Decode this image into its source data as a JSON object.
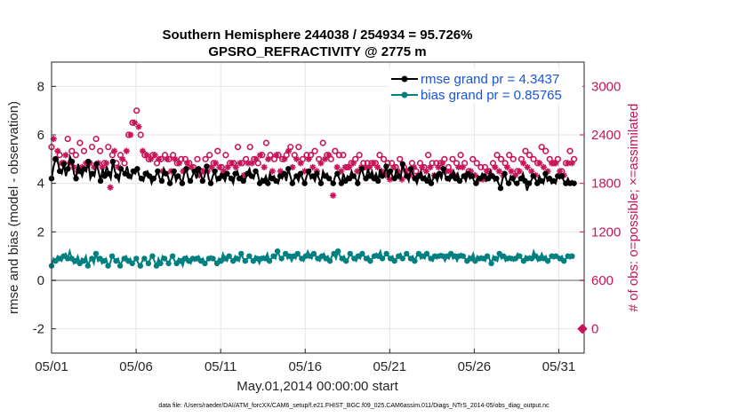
{
  "chart_data": {
    "type": "line",
    "title": "Southern Hemisphere 244038 / 254934 = 95.726%",
    "subtitle": "GPSRO_REFRACTIVITY @ 2775 m",
    "xlabel": "May.01,2014 00:00:00 start",
    "ylabel": "rmse and bias (model - observation)",
    "ylabel_right": "# of obs: o=possible; ×=assimilated",
    "xlim": [
      0,
      31.5
    ],
    "ylim": [
      -3,
      9
    ],
    "ylim_right": [
      -300,
      3300
    ],
    "x_ticks": [
      0,
      5,
      10,
      15,
      20,
      25,
      30
    ],
    "x_tick_labels": [
      "05/01",
      "05/06",
      "05/11",
      "05/16",
      "05/21",
      "05/26",
      "05/31"
    ],
    "y_ticks": [
      -2,
      0,
      2,
      4,
      6,
      8
    ],
    "y_tick_labels": [
      "-2",
      "0",
      "2",
      "4",
      "6",
      "8"
    ],
    "y_right_ticks": [
      0,
      600,
      1200,
      1800,
      2400,
      3000
    ],
    "y_right_tick_labels": [
      "0",
      "600",
      "1200",
      "1800",
      "2400",
      "3000"
    ],
    "grid": true,
    "legend_position": "top-right",
    "series": [
      {
        "name": "rmse grand pr = 4.3437",
        "axis": "left",
        "color": "#000000",
        "values": [
          4.2,
          4.7,
          5.0,
          4.9,
          4.5,
          4.4,
          4.8,
          4.3,
          4.6,
          5.1,
          4.9,
          4.4,
          4.2,
          4.8,
          4.5,
          4.3,
          4.6,
          4.5,
          4.9,
          4.2,
          4.4,
          4.3,
          4.8,
          4.5,
          4.1,
          4.6,
          4.3,
          4.7,
          4.4,
          4.2,
          4.9,
          4.5,
          4.3,
          4.1,
          4.6,
          4.5,
          4.4,
          4.7,
          4.3,
          4.2,
          4.5,
          4.4,
          4.6,
          4.3,
          4.2,
          4.1,
          4.4,
          4.5,
          4.3,
          4.0,
          4.2,
          4.3,
          4.5,
          4.2,
          4.1,
          4.6,
          4.4,
          4.3,
          4.0,
          4.2,
          4.5,
          4.1,
          4.3,
          4.2,
          4.0,
          4.4,
          4.6,
          4.2,
          4.1,
          4.3,
          4.5,
          4.2,
          4.6,
          4.4,
          4.1,
          4.3,
          4.7,
          4.2,
          4.0,
          4.3,
          4.5,
          4.1,
          4.2,
          4.4,
          4.3,
          4.1,
          4.4,
          4.3,
          4.2,
          4.0,
          4.4,
          4.5,
          4.2,
          4.3,
          4.1,
          4.2,
          4.4,
          4.6,
          4.3,
          4.2,
          4.5,
          4.4,
          4.0,
          4.2,
          4.1,
          4.3,
          4.0,
          4.4,
          4.2,
          4.3,
          4.1,
          4.0,
          4.3,
          4.2,
          4.4,
          4.1,
          4.6,
          4.3,
          4.0,
          4.2,
          4.3,
          4.1,
          4.4,
          4.2,
          4.0,
          4.3,
          4.5,
          4.2,
          4.3,
          4.1,
          4.4,
          4.2,
          4.0,
          4.5,
          4.3,
          4.4,
          4.2,
          4.1,
          4.0,
          4.3,
          4.4,
          4.2,
          4.0,
          4.4,
          4.1,
          4.3,
          4.2,
          4.5,
          4.3,
          4.2,
          4.0,
          4.4,
          4.6,
          4.3,
          4.2,
          4.6,
          4.3,
          4.5,
          4.2,
          4.4,
          4.1,
          4.6,
          4.3,
          4.4,
          4.7,
          4.2,
          4.5,
          4.3,
          4.2,
          4.6,
          4.3,
          4.2,
          4.8,
          4.5,
          4.3,
          4.1,
          4.6,
          4.4,
          4.2,
          4.0,
          4.3,
          4.5,
          4.2,
          4.3,
          4.1,
          4.4,
          4.0,
          4.2,
          4.3,
          4.1,
          4.4,
          4.2,
          4.6,
          4.3,
          4.2,
          4.1,
          4.3,
          4.5,
          4.2,
          4.4,
          4.1,
          4.2,
          4.3,
          4.1,
          4.4,
          4.2,
          4.3,
          4.1,
          4.0,
          4.3,
          4.2,
          4.4,
          4.3,
          4.1,
          4.2,
          4.5,
          4.3,
          4.1,
          4.2,
          4.0,
          3.8,
          4.2,
          4.4,
          4.1,
          4.0,
          4.3,
          4.2,
          4.0,
          4.0,
          4.1,
          4.2,
          4.4,
          4.1,
          3.7,
          4.0,
          4.1,
          4.3,
          4.2,
          4.0,
          4.3,
          4.1,
          4.0,
          4.4,
          4.1,
          4.2,
          4.0,
          4.1,
          4.0,
          4.3,
          4.2,
          4.3,
          4.1,
          4.0,
          4.2,
          4.0,
          4.1,
          4.0
        ]
      },
      {
        "name": "bias grand pr = 0.85765",
        "axis": "left",
        "color": "#008080",
        "values": [
          0.6,
          0.9,
          0.8,
          1.0,
          0.9,
          0.8,
          1.0,
          1.1,
          0.9,
          1.2,
          0.9,
          0.7,
          0.8,
          1.0,
          0.7,
          0.9,
          0.8,
          1.0,
          0.6,
          0.8,
          0.9,
          0.7,
          1.1,
          0.8,
          0.9,
          0.7,
          0.8,
          0.9,
          0.6,
          0.7,
          1.0,
          0.9,
          0.8,
          0.9,
          0.6,
          0.8,
          0.9,
          1.0,
          0.8,
          0.9,
          0.7,
          0.8,
          0.9,
          0.7,
          0.6,
          0.8,
          0.9,
          0.8,
          0.7,
          0.9,
          1.0,
          0.8,
          0.6,
          0.9,
          0.7,
          1.0,
          0.9,
          0.8,
          0.7,
          0.9,
          1.0,
          0.8,
          0.7,
          0.9,
          0.8,
          0.6,
          0.9,
          1.0,
          0.8,
          0.7,
          0.9,
          0.8,
          0.9,
          1.0,
          0.8,
          0.9,
          0.7,
          0.8,
          0.9,
          1.0,
          0.9,
          0.8,
          0.7,
          0.9,
          0.8,
          1.1,
          0.9,
          0.8,
          1.0,
          0.9,
          0.8,
          1.0,
          0.9,
          0.8,
          1.1,
          0.9,
          0.8,
          0.9,
          1.0,
          0.9,
          0.8,
          1.0,
          0.9,
          0.7,
          0.9,
          1.0,
          0.9,
          1.1,
          0.8,
          0.9,
          1.0,
          0.9,
          1.2,
          1.0,
          0.9,
          1.0,
          1.1,
          0.9,
          1.0,
          0.8,
          1.0,
          0.9,
          1.1,
          1.0,
          0.9,
          0.8,
          1.0,
          1.2,
          1.0,
          0.9,
          1.1,
          1.0,
          0.9,
          0.8,
          1.0,
          1.1,
          0.9,
          1.0,
          0.8,
          1.0,
          1.1,
          0.9,
          1.2,
          1.0,
          0.9,
          1.0,
          0.8,
          0.9,
          1.1,
          1.0,
          0.9,
          0.8,
          1.0,
          0.9,
          1.1,
          1.0,
          0.9,
          1.0,
          0.8,
          0.9,
          1.0,
          1.1,
          1.0,
          1.2,
          0.9,
          1.0,
          1.1,
          1.0,
          0.9,
          1.0,
          0.8,
          0.9,
          1.0,
          1.1,
          0.9,
          1.0,
          1.1,
          1.0,
          0.9,
          1.0,
          0.8,
          1.0,
          1.1,
          0.9,
          1.0,
          0.9,
          1.1,
          1.0,
          0.9,
          0.8,
          1.0,
          0.9,
          1.0,
          1.1,
          1.0,
          0.8,
          1.0,
          0.9,
          1.1,
          0.9,
          1.0,
          0.8,
          1.0,
          1.1,
          1.0,
          0.9,
          0.8,
          1.0,
          0.9,
          1.1,
          0.8,
          1.0,
          0.9,
          1.0,
          0.9,
          0.8,
          1.0,
          0.9,
          0.7,
          1.0,
          0.9,
          0.8,
          1.1,
          0.9,
          1.0,
          0.8,
          0.9,
          1.0,
          0.9,
          0.8,
          0.9,
          1.1,
          1.0,
          0.9,
          0.8,
          1.0,
          0.9,
          1.0,
          0.9,
          1.2,
          1.0,
          0.8,
          0.9,
          1.1,
          0.9,
          1.0,
          0.8,
          0.9,
          1.0,
          0.9,
          1.0,
          1.0,
          0.9,
          1.0,
          0.8,
          0.9,
          1.0,
          0.9,
          1.0,
          0.9
        ]
      }
    ],
    "obs_possible": {
      "axis": "right",
      "marker": "circle",
      "color": "#c8155a",
      "values": [
        2250,
        2450,
        2100,
        2300,
        2150,
        2200,
        2050,
        2250,
        2350,
        2150,
        2200,
        2100,
        2150,
        2050,
        2300,
        2100,
        2200,
        2150,
        2050,
        2150,
        2250,
        2100,
        2350,
        2150,
        2200,
        2100,
        2050,
        2150,
        2250,
        2050,
        2150,
        2300,
        2050,
        2100,
        2150,
        2200,
        2050,
        2300,
        2400,
        2500,
        2550,
        2650,
        2700,
        2600,
        2400,
        2300,
        2150,
        2250,
        2100,
        2200,
        2150,
        2250,
        2050,
        2200,
        2100,
        2050,
        2150,
        2200,
        2100,
        2050,
        2150,
        2200,
        2050,
        2150,
        2100,
        2050,
        2100,
        2150,
        2050,
        2100,
        2000,
        2050,
        2100,
        2000,
        1950,
        2050,
        2100,
        2050,
        2150,
        2100,
        2050,
        2150,
        2200,
        2100,
        2000,
        2050,
        2150,
        2100,
        2050,
        2150,
        2050,
        2100,
        2250,
        2150,
        2050,
        2000,
        2100,
        2150,
        2250,
        2150,
        2100,
        2200,
        2050,
        2250,
        2150,
        2100,
        2300,
        2200,
        2150,
        2050,
        2100,
        2250,
        2150,
        2050,
        2100,
        2200,
        2150,
        2300,
        2250,
        2100,
        2150,
        2200,
        2250,
        2150,
        2100,
        2050,
        2150,
        2200,
        2150,
        2100,
        2200,
        2050,
        2100,
        2150,
        2300,
        2200,
        2150,
        2250,
        2100,
        2050,
        2200,
        2100,
        2150,
        2050,
        2150,
        2100,
        2000,
        2100,
        2050,
        2150,
        2100,
        2050,
        2150,
        2100,
        2050,
        2100,
        2050,
        2100,
        2050,
        2150,
        2050,
        2100,
        2150,
        2050,
        2100,
        2000,
        2050,
        1950,
        2050,
        2100,
        2000,
        2050,
        2100,
        1950,
        2000,
        2050,
        1950,
        2000,
        2050,
        2100,
        1950,
        2000,
        2050,
        2100,
        2000,
        2050,
        2150,
        2100,
        2050,
        2000,
        2050,
        2100,
        2050,
        2150,
        2100,
        2050,
        2000,
        2050,
        2100,
        2000,
        2050,
        2100,
        2150,
        2100,
        2050,
        2000,
        1950,
        2050,
        2100,
        2000,
        2050,
        1950,
        2000,
        1950,
        2000,
        2050,
        1950,
        2000,
        2050,
        2100,
        2150,
        2050,
        2100,
        2000,
        2050,
        2100,
        2150,
        2050,
        2100,
        2000,
        1950,
        2050,
        2100,
        2150,
        2200,
        2100,
        2150,
        2050,
        2100,
        2000,
        2050,
        2150,
        2250,
        2100,
        2200,
        2050,
        2100,
        2150,
        2050,
        2150,
        2100,
        2050,
        1950,
        2000,
        2050,
        2150,
        2200,
        2150,
        2100
      ]
    },
    "obs_assimilated": {
      "axis": "right",
      "marker": "asterisk",
      "color": "#c8155a",
      "values": [
        2050,
        2350,
        2000,
        2200,
        1850,
        2050,
        1950,
        2150,
        2250,
        2050,
        2100,
        2000,
        2050,
        1950,
        2200,
        2000,
        2100,
        2050,
        1950,
        2050,
        2150,
        2000,
        2250,
        2050,
        2100,
        2000,
        1950,
        2050,
        2150,
        1750,
        2050,
        2200,
        1950,
        2000,
        2050,
        2100,
        1950,
        2200,
        2300,
        2400,
        2450,
        2550,
        2600,
        2500,
        2300,
        2200,
        2050,
        2150,
        2000,
        2100,
        2050,
        2150,
        1950,
        2100,
        2000,
        1950,
        2050,
        2100,
        2000,
        1950,
        2050,
        2100,
        1950,
        2050,
        2000,
        1950,
        2000,
        2050,
        1950,
        2000,
        1900,
        1950,
        2000,
        1900,
        1650,
        1950,
        2000,
        1950,
        2050,
        2000,
        1950,
        2050,
        2100,
        2000,
        1700,
        1950,
        2050,
        2000,
        1950,
        2050,
        1950,
        2000,
        2150,
        2050,
        1950,
        1900,
        2000,
        2050,
        2150,
        2050,
        2000,
        2100,
        1950,
        2150,
        2050,
        2000,
        2200,
        2100,
        2050,
        1950,
        2000,
        2150,
        2050,
        1950,
        2000,
        2100,
        2050,
        2200,
        2150,
        2000,
        2050,
        2100,
        2150,
        2050,
        2000,
        1950,
        2050,
        2100,
        2050,
        2000,
        2100,
        1950,
        2000,
        2050,
        2200,
        2100,
        2050,
        2150,
        2000,
        1650,
        2100,
        2000,
        2050,
        1950,
        2050,
        2000,
        1900,
        2000,
        1950,
        2050,
        2000,
        1950,
        2050,
        2000,
        1950,
        2000,
        1950,
        2000,
        1950,
        2050,
        1950,
        2000,
        2050,
        1950,
        2000,
        1900,
        1950,
        1850,
        1950,
        2000,
        1900,
        1950,
        2000,
        1850,
        1900,
        1950,
        1850,
        1900,
        1950,
        2000,
        1850,
        1900,
        1950,
        2000,
        1900,
        1950,
        2050,
        2000,
        1950,
        1900,
        1950,
        2000,
        1950,
        2050,
        2000,
        1950,
        1900,
        1950,
        2000,
        1900,
        1950,
        2000,
        2050,
        2000,
        1950,
        1900,
        1850,
        1950,
        2000,
        1900,
        1950,
        1850,
        1900,
        1850,
        1900,
        1950,
        1850,
        1900,
        1950,
        2000,
        2050,
        1950,
        2000,
        1900,
        1950,
        2000,
        2050,
        1950,
        2000,
        1900,
        1850,
        1950,
        2000,
        2050,
        2100,
        2000,
        2050,
        1950,
        2000,
        1900,
        1950,
        2050,
        2150,
        2000,
        2100,
        1950,
        2000,
        2050,
        1950,
        2050,
        2000,
        1950,
        1850,
        1900,
        1950,
        2050,
        2100,
        2050,
        2000
      ]
    },
    "extra_marker": {
      "x": 31.5,
      "y_right": 0,
      "marker": "diamond",
      "color": "#c8155a"
    }
  },
  "footnote": "data file: /Users/raeder/DAI/ATM_forcXX/CAM6_setup/f.e21.FHIST_BGC.f09_025.CAM6assim.011/Diags_NTrS_2014-05/obs_diag_output.nc",
  "colors": {
    "rmse": "#000000",
    "bias": "#008080",
    "right_axis": "#c8155a",
    "zero_line": "#b0b0b0",
    "grid": "#e6e6e6"
  }
}
